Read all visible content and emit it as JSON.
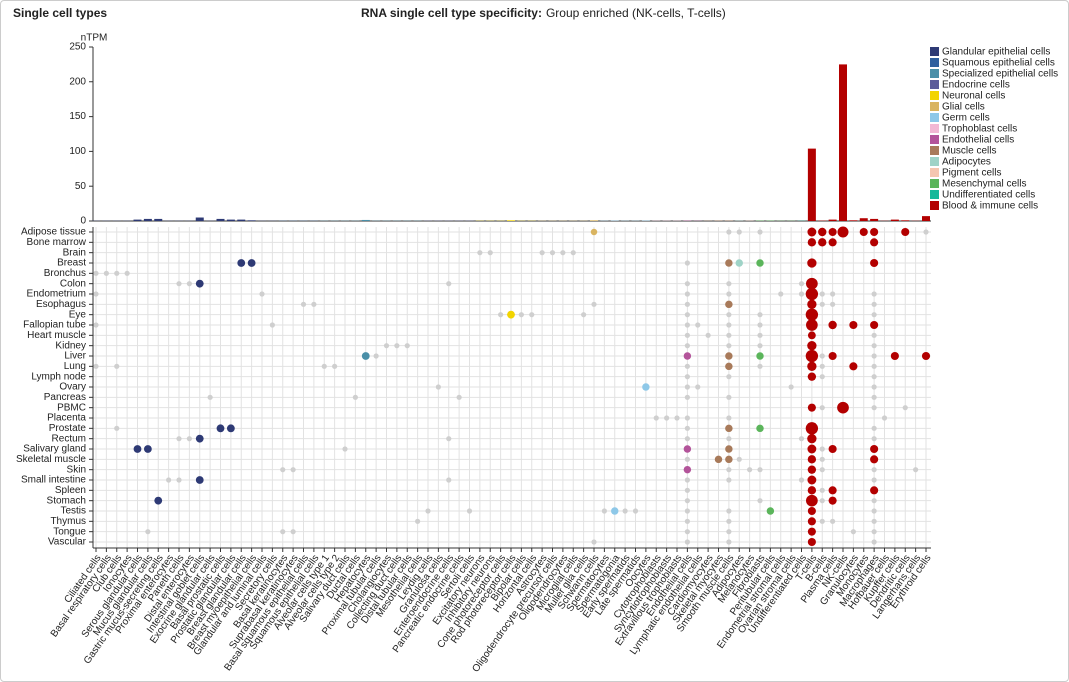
{
  "chart_data": {
    "type": "bar-dot-matrix",
    "page_title": "Single cell types",
    "title_label": "RNA single cell type specificity:",
    "title": "Group enriched (NK-cells, T-cells)",
    "y_label": "nTPM",
    "ylim": [
      0,
      250
    ],
    "yticks": [
      0,
      50,
      100,
      150,
      200,
      250
    ],
    "legend": [
      {
        "name": "Glandular epithelial cells",
        "color": "#2e3a75"
      },
      {
        "name": "Squamous epithelial cells",
        "color": "#2f5f9e"
      },
      {
        "name": "Specialized epithelial cells",
        "color": "#4a8fa8"
      },
      {
        "name": "Endocrine cells",
        "color": "#5b5b9a"
      },
      {
        "name": "Neuronal cells",
        "color": "#f2d400"
      },
      {
        "name": "Glial cells",
        "color": "#d9b460"
      },
      {
        "name": "Germ cells",
        "color": "#8ec8e8"
      },
      {
        "name": "Trophoblast cells",
        "color": "#f2b8d4"
      },
      {
        "name": "Endothelial cells",
        "color": "#b3549a"
      },
      {
        "name": "Muscle cells",
        "color": "#a87a5a"
      },
      {
        "name": "Adipocytes",
        "color": "#9fd3c7"
      },
      {
        "name": "Pigment cells",
        "color": "#f5c6b0"
      },
      {
        "name": "Mesenchymal cells",
        "color": "#5bb55b"
      },
      {
        "name": "Undifferentiated cells",
        "color": "#14b89a"
      },
      {
        "name": "Blood & immune cells",
        "color": "#b30000"
      }
    ],
    "categories": [
      "Ciliated cells",
      "Basal respiratory cells",
      "Club cells",
      "Ionocytes",
      "Serous glandular cells",
      "Mucus glandular cells",
      "Gastric mucus-secreting cells",
      "Proximal enterocytes",
      "Paneth cells",
      "Distal enterocytes",
      "Intestinal goblet cells",
      "Exocrine glandular cells",
      "Basal prostatic cells",
      "Prostatic glandular cells",
      "Breast glandular cells",
      "Breast myoepithelial cells",
      "Glandular and luminal cells",
      "Secretory cells",
      "Basal keratinocytes",
      "Suprabasal keratinocytes",
      "Basal squamous epithelial cells",
      "Squamous epithelial cells",
      "Alveolar cells type 1",
      "Alveolar cells type 2",
      "Salivary duct cells",
      "Ductal cells",
      "Hepatocytes",
      "Proximal tubular cells",
      "Cholangiocytes",
      "Collecting duct cells",
      "Distal tubular cells",
      "Mesothelial cells",
      "Leydig cells",
      "Granulosa cells",
      "Enteroendocrine cells",
      "Pancreatic endocrine cells",
      "Sertoli cells",
      "Excitatory neurons",
      "Inhibitory neurons",
      "Cone photoreceptor cells",
      "Rod photoreceptor cells",
      "Bipolar cells",
      "Horizontal cells",
      "Astrocytes",
      "Oligodendrocyte precursor cells",
      "Oligodendrocytes",
      "Microglial cells",
      "Muller glia cells",
      "Schwann cells",
      "Spermatocytes",
      "Spermatogonia",
      "Early spermatids",
      "Late spermatids",
      "Oocytes",
      "Cytotrophoblasts",
      "Syncytiotrophoblasts",
      "Extravillous trophoblasts",
      "Endothelial cells",
      "Lymphatic endothelial cells",
      "Cardiomyocytes",
      "Skeletal myocytes",
      "Smooth muscle cells",
      "Adipocytes",
      "Melanocytes",
      "Fibroblasts",
      "Peritubular cells",
      "Endometrial stromal cells",
      "Ovarian stromal cells",
      "Undifferentiated cells",
      "T-cells",
      "B-cells",
      "Plasma cells",
      "NK-cells",
      "Granulocytes",
      "Monocytes",
      "Macrophages",
      "Hofbauer cells",
      "Kupffer cells",
      "Dendritic cells",
      "Langerhans cells",
      "Erythroid cells"
    ],
    "category_groups": [
      0,
      0,
      0,
      0,
      0,
      0,
      0,
      0,
      0,
      0,
      0,
      0,
      0,
      0,
      0,
      0,
      0,
      0,
      1,
      1,
      1,
      1,
      2,
      2,
      2,
      2,
      2,
      2,
      2,
      2,
      2,
      2,
      3,
      3,
      3,
      3,
      3,
      4,
      4,
      4,
      4,
      4,
      4,
      5,
      5,
      5,
      5,
      5,
      5,
      6,
      6,
      6,
      6,
      6,
      7,
      7,
      7,
      8,
      8,
      9,
      9,
      9,
      10,
      11,
      12,
      12,
      12,
      12,
      13,
      14,
      14,
      14,
      14,
      14,
      14,
      14,
      14,
      14,
      14,
      14,
      14
    ],
    "values": [
      0.3,
      0.3,
      0.3,
      0.3,
      2,
      3,
      3,
      0.3,
      0.3,
      0.3,
      5,
      0.3,
      3,
      2,
      2,
      1,
      0.3,
      0.3,
      0.3,
      0.3,
      0.3,
      0.3,
      0.3,
      0.3,
      0.3,
      0.3,
      1.5,
      0.3,
      0.3,
      0.3,
      0.3,
      0.3,
      0.3,
      0.3,
      0.3,
      0.3,
      0.3,
      0.3,
      0.3,
      0.3,
      1,
      0.3,
      0.3,
      0.3,
      0.3,
      0.3,
      0.3,
      0.3,
      1,
      0.3,
      0.5,
      0.3,
      0.3,
      0.5,
      0.3,
      0.3,
      0.3,
      0.5,
      0.3,
      0.3,
      0.5,
      0.5,
      0.3,
      0.3,
      0.5,
      0.5,
      0.3,
      0.3,
      0.3,
      104,
      0.5,
      2,
      225,
      1,
      4,
      3,
      0.3,
      2,
      1,
      0.3,
      7
    ],
    "tissues": [
      {
        "name": "Adipose tissue",
        "enriched": [
          [
            48,
            1
          ],
          [
            69,
            8
          ],
          [
            70,
            6
          ],
          [
            71,
            5
          ],
          [
            72,
            20
          ],
          [
            74,
            5
          ],
          [
            75,
            5
          ],
          [
            78,
            5
          ]
        ],
        "detected": [
          61,
          62,
          64,
          80
        ]
      },
      {
        "name": "Bone marrow",
        "enriched": [
          [
            69,
            6
          ],
          [
            70,
            6
          ],
          [
            71,
            5
          ],
          [
            75,
            5
          ]
        ],
        "detected": []
      },
      {
        "name": "Brain",
        "enriched": [],
        "detected": [
          37,
          38,
          43,
          44,
          45,
          46
        ]
      },
      {
        "name": "Breast",
        "enriched": [
          [
            14,
            4
          ],
          [
            15,
            4
          ],
          [
            61,
            3
          ],
          [
            62,
            3
          ],
          [
            64,
            3
          ],
          [
            69,
            10
          ],
          [
            75,
            5
          ]
        ],
        "detected": [
          57
        ]
      },
      {
        "name": "Bronchus",
        "enriched": [],
        "detected": [
          0,
          1,
          2,
          3
        ]
      },
      {
        "name": "Colon",
        "enriched": [
          [
            10,
            4
          ],
          [
            69,
            25
          ]
        ],
        "detected": [
          8,
          9,
          34,
          57,
          61,
          68
        ]
      },
      {
        "name": "Endometrium",
        "enriched": [
          [
            69,
            30
          ]
        ],
        "detected": [
          0,
          16,
          57,
          61,
          66,
          68,
          70,
          71,
          75
        ]
      },
      {
        "name": "Esophagus",
        "enriched": [
          [
            61,
            3
          ],
          [
            69,
            10
          ]
        ],
        "detected": [
          20,
          21,
          48,
          57,
          70,
          71,
          75
        ]
      },
      {
        "name": "Eye",
        "enriched": [
          [
            40,
            4
          ],
          [
            69,
            30
          ]
        ],
        "detected": [
          39,
          41,
          42,
          47,
          57,
          61,
          64,
          75
        ]
      },
      {
        "name": "Fallopian tube",
        "enriched": [
          [
            69,
            25
          ],
          [
            71,
            6
          ],
          [
            73,
            5
          ],
          [
            75,
            5
          ]
        ],
        "detected": [
          0,
          17,
          57,
          58,
          61,
          64
        ]
      },
      {
        "name": "Heart muscle",
        "enriched": [
          [
            69,
            4
          ]
        ],
        "detected": [
          57,
          59,
          61,
          64,
          75
        ]
      },
      {
        "name": "Kidney",
        "enriched": [
          [
            69,
            10
          ]
        ],
        "detected": [
          28,
          29,
          30,
          57,
          61,
          64,
          75
        ]
      },
      {
        "name": "Liver",
        "enriched": [
          [
            26,
            4
          ],
          [
            57,
            3
          ],
          [
            61,
            3
          ],
          [
            64,
            3
          ],
          [
            69,
            30
          ],
          [
            71,
            5
          ],
          [
            77,
            5
          ],
          [
            80,
            5
          ]
        ],
        "detected": [
          27,
          70,
          75
        ]
      },
      {
        "name": "Lung",
        "enriched": [
          [
            61,
            3
          ],
          [
            69,
            10
          ],
          [
            73,
            5
          ]
        ],
        "detected": [
          0,
          2,
          22,
          23,
          57,
          64,
          70,
          75
        ]
      },
      {
        "name": "Lymph node",
        "enriched": [
          [
            69,
            6
          ]
        ],
        "detected": [
          57,
          61,
          70,
          75
        ]
      },
      {
        "name": "Ovary",
        "enriched": [
          [
            53,
            3
          ]
        ],
        "detected": [
          33,
          57,
          58,
          67,
          75
        ]
      },
      {
        "name": "Pancreas",
        "enriched": [],
        "detected": [
          11,
          25,
          35,
          57,
          61,
          75
        ]
      },
      {
        "name": "PBMC",
        "enriched": [
          [
            69,
            5
          ],
          [
            72,
            25
          ]
        ],
        "detected": [
          70,
          75,
          78
        ]
      },
      {
        "name": "Placenta",
        "enriched": [],
        "detected": [
          54,
          55,
          56,
          57,
          61,
          76
        ]
      },
      {
        "name": "Prostate",
        "enriched": [
          [
            12,
            4
          ],
          [
            13,
            4
          ],
          [
            61,
            3
          ],
          [
            64,
            3
          ],
          [
            69,
            30
          ]
        ],
        "detected": [
          2,
          57,
          75
        ]
      },
      {
        "name": "Rectum",
        "enriched": [
          [
            10,
            4
          ],
          [
            69,
            10
          ]
        ],
        "detected": [
          8,
          9,
          34,
          57,
          61,
          68,
          75
        ]
      },
      {
        "name": "Salivary gland",
        "enriched": [
          [
            4,
            4
          ],
          [
            5,
            4
          ],
          [
            57,
            3
          ],
          [
            61,
            3
          ],
          [
            69,
            8
          ],
          [
            71,
            5
          ],
          [
            75,
            5
          ]
        ],
        "detected": [
          24,
          70
        ]
      },
      {
        "name": "Skeletal muscle",
        "enriched": [
          [
            60,
            3
          ],
          [
            61,
            3
          ],
          [
            69,
            6
          ],
          [
            75,
            5
          ]
        ],
        "detected": [
          57,
          62,
          70
        ]
      },
      {
        "name": "Skin",
        "enriched": [
          [
            57,
            3
          ],
          [
            69,
            6
          ]
        ],
        "detected": [
          18,
          19,
          61,
          63,
          64,
          70,
          75,
          79
        ]
      },
      {
        "name": "Small intestine",
        "enriched": [
          [
            10,
            4
          ],
          [
            69,
            8
          ]
        ],
        "detected": [
          7,
          8,
          34,
          57,
          61,
          68,
          75
        ]
      },
      {
        "name": "Spleen",
        "enriched": [
          [
            69,
            6
          ],
          [
            71,
            5
          ],
          [
            75,
            5
          ]
        ],
        "detected": [
          57,
          70
        ]
      },
      {
        "name": "Stomach",
        "enriched": [
          [
            6,
            4
          ],
          [
            69,
            25
          ],
          [
            71,
            5
          ]
        ],
        "detected": [
          57,
          64,
          70,
          75
        ]
      },
      {
        "name": "Testis",
        "enriched": [
          [
            50,
            3
          ],
          [
            65,
            3
          ],
          [
            69,
            5
          ]
        ],
        "detected": [
          32,
          36,
          49,
          51,
          52,
          57,
          61,
          75
        ]
      },
      {
        "name": "Thymus",
        "enriched": [
          [
            69,
            5
          ]
        ],
        "detected": [
          31,
          57,
          61,
          70,
          71,
          75
        ]
      },
      {
        "name": "Tongue",
        "enriched": [
          [
            69,
            5
          ]
        ],
        "detected": [
          5,
          18,
          19,
          57,
          61,
          73,
          75
        ]
      },
      {
        "name": "Vascular",
        "enriched": [
          [
            69,
            5
          ]
        ],
        "detected": [
          48,
          57,
          61,
          75
        ]
      }
    ],
    "grid": true
  }
}
